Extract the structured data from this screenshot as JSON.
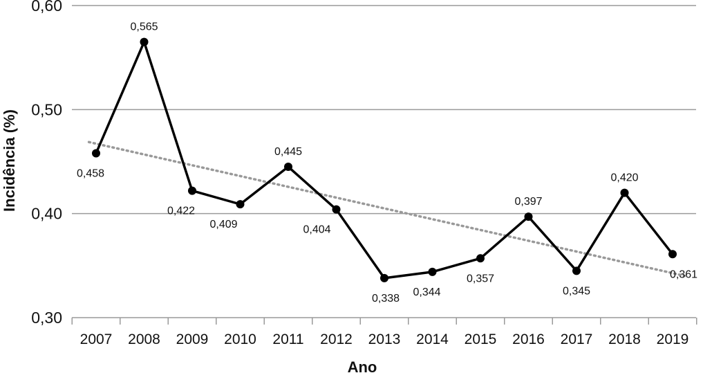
{
  "chart_data": {
    "type": "line",
    "xlabel": "Ano",
    "ylabel": "Incidência (%)",
    "ylim": [
      0.3,
      0.6
    ],
    "y_ticks": [
      0.3,
      0.4,
      0.5,
      0.6
    ],
    "y_tick_labels": [
      "0,30",
      "0,40",
      "0,50",
      "0,60"
    ],
    "categories": [
      "2007",
      "2008",
      "2009",
      "2010",
      "2011",
      "2012",
      "2013",
      "2014",
      "2015",
      "2016",
      "2017",
      "2018",
      "2019"
    ],
    "series": [
      {
        "values": [
          0.458,
          0.565,
          0.422,
          0.409,
          0.445,
          0.404,
          0.338,
          0.344,
          0.357,
          0.397,
          0.345,
          0.42,
          0.361
        ],
        "labels": [
          "0,458",
          "0,565",
          "0,422",
          "0,409",
          "0,445",
          "0,404",
          "0,338",
          "0,344",
          "0,357",
          "0,397",
          "0,345",
          "0,420",
          "0,361"
        ],
        "color": "#000000"
      }
    ],
    "trendline": {
      "type": "linear",
      "style": "dotted",
      "color": "#999999"
    },
    "grid": "horizontal",
    "legend": "none"
  }
}
